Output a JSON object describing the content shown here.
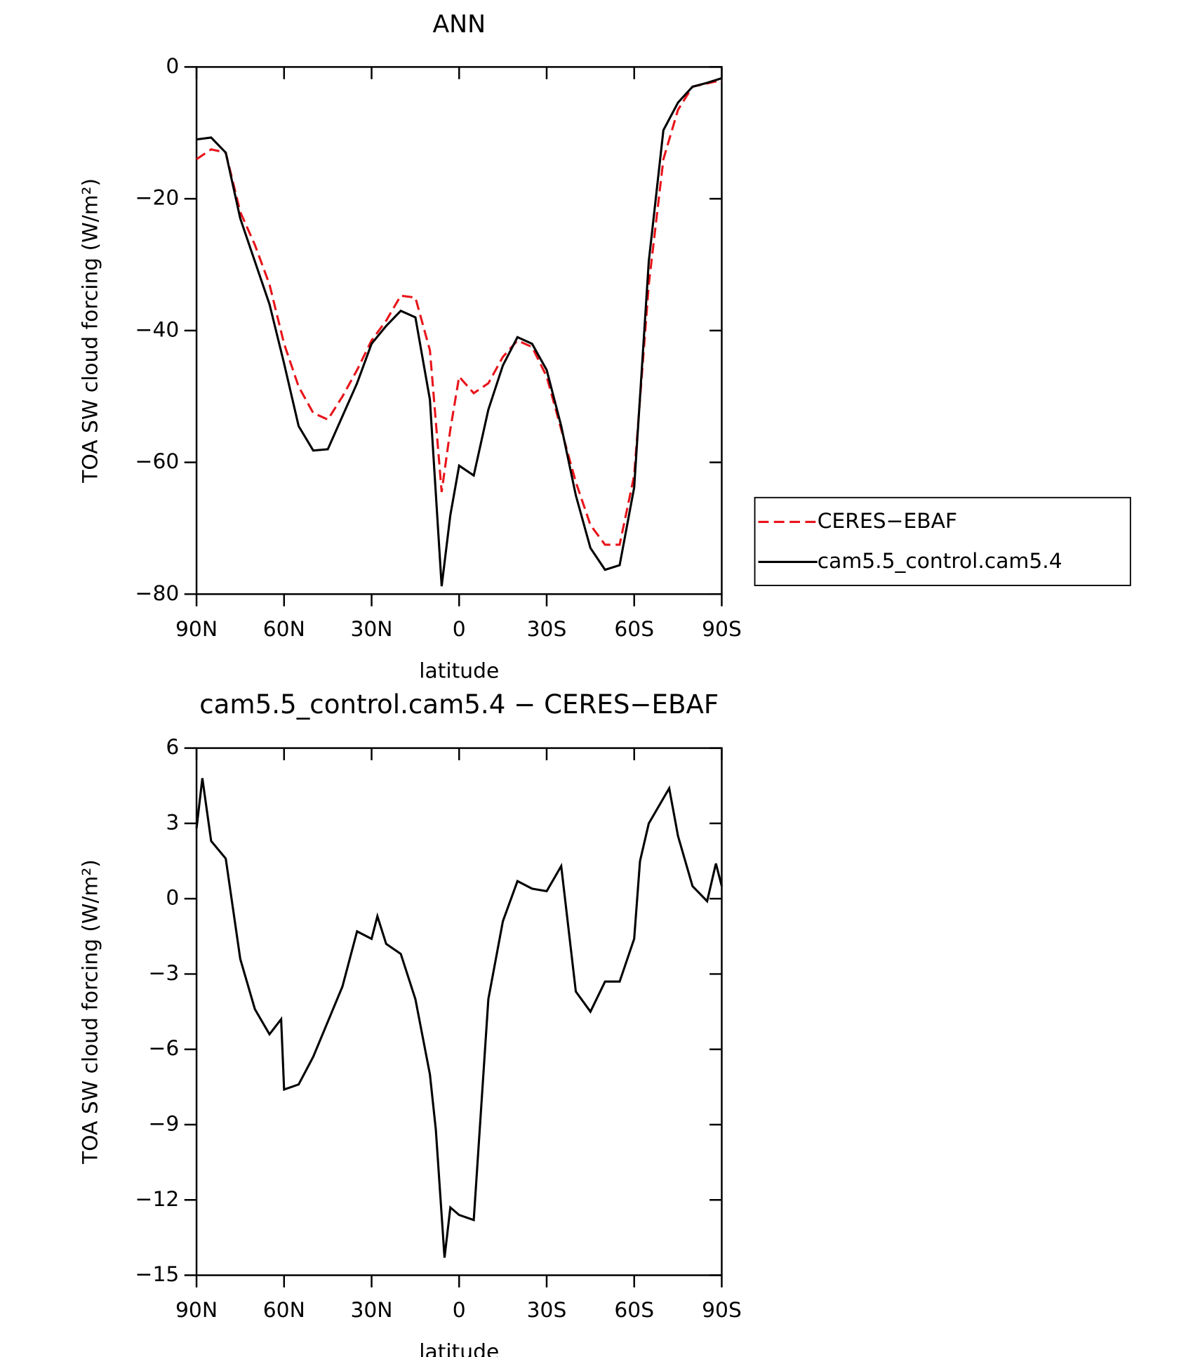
{
  "chart_data": [
    {
      "type": "line",
      "title": "ANN",
      "xlabel": "latitude",
      "ylabel": "TOA SW cloud forcing (W/m²)",
      "x": [
        90,
        85,
        80,
        75,
        70,
        65,
        60,
        55,
        50,
        45,
        40,
        35,
        30,
        25,
        20,
        15,
        10,
        6,
        3,
        0,
        -5,
        -10,
        -15,
        -20,
        -25,
        -30,
        -35,
        -40,
        -45,
        -50,
        -55,
        -60,
        -65,
        -70,
        -75,
        -80,
        -85,
        -90
      ],
      "series": [
        {
          "name": "CERES−EBAF",
          "color": "#e8141a",
          "dashed": true,
          "values": [
            -14,
            -12.5,
            -13,
            -22,
            -27,
            -33,
            -42,
            -48.5,
            -52.5,
            -53.5,
            -50,
            -46,
            -41.5,
            -38.5,
            -34.7,
            -35,
            -43,
            -64.5,
            -55,
            -47,
            -49.5,
            -48,
            -44,
            -41.5,
            -42.5,
            -47,
            -55,
            -63,
            -69.5,
            -72.5,
            -72.5,
            -62,
            -33,
            -14,
            -6.5,
            -3,
            -2.5,
            -2
          ]
        },
        {
          "name": "cam5.5_control.cam5.4",
          "color": "#000000",
          "dashed": false,
          "values": [
            -11,
            -10.7,
            -13,
            -23,
            -29.5,
            -36,
            -45,
            -54.5,
            -58.2,
            -58,
            -53,
            -48,
            -42,
            -39.3,
            -37,
            -38,
            -50.5,
            -78.8,
            -68,
            -60.5,
            -62,
            -52,
            -45.3,
            -41,
            -42,
            -46,
            -54.5,
            -65,
            -73,
            -76.3,
            -75.6,
            -63.8,
            -29.5,
            -9.6,
            -5.4,
            -3,
            -2.4,
            -1.7
          ]
        }
      ],
      "xlim": [
        90,
        -90
      ],
      "xticks": [
        {
          "value": 90,
          "label": "90N"
        },
        {
          "value": 60,
          "label": "60N"
        },
        {
          "value": 30,
          "label": "30N"
        },
        0,
        {
          "value": -30,
          "label": "30S"
        },
        {
          "value": -60,
          "label": "60S"
        },
        {
          "value": -90,
          "label": "90S"
        }
      ],
      "ylim": [
        -80,
        0
      ],
      "yticks": [
        0,
        {
          "value": -20,
          "label": "−20"
        },
        {
          "value": -40,
          "label": "−40"
        },
        {
          "value": -60,
          "label": "−60"
        },
        {
          "value": -80,
          "label": "−80"
        }
      ],
      "legend": "outside right",
      "grid": false
    },
    {
      "type": "line",
      "title": "cam5.5_control.cam5.4 − CERES−EBAF",
      "xlabel": "latitude",
      "ylabel": "TOA SW cloud forcing (W/m²)",
      "x": [
        90,
        88,
        85,
        80,
        75,
        70,
        65,
        61,
        60,
        55,
        50,
        45,
        40,
        35,
        30,
        28,
        25,
        20,
        15,
        10,
        8,
        5,
        3,
        0,
        -5,
        -10,
        -15,
        -20,
        -25,
        -30,
        -35,
        -40,
        -45,
        -50,
        -55,
        -60,
        -62,
        -65,
        -70,
        -72,
        -75,
        -80,
        -85,
        -88,
        -90
      ],
      "series": [
        {
          "color": "#000000",
          "dashed": false,
          "values": [
            2.8,
            4.8,
            2.3,
            1.6,
            -2.4,
            -4.4,
            -5.4,
            -4.8,
            -7.6,
            -7.4,
            -6.3,
            -4.9,
            -3.5,
            -1.3,
            -1.6,
            -0.7,
            -1.8,
            -2.2,
            -4,
            -7,
            -9.2,
            -14.3,
            -12.3,
            -12.6,
            -12.8,
            -4,
            -0.9,
            0.7,
            0.4,
            0.3,
            1.3,
            -3.7,
            -4.5,
            -3.3,
            -3.3,
            -1.6,
            1.5,
            3,
            4,
            4.4,
            2.5,
            0.5,
            -0.1,
            1.4,
            0.5
          ]
        }
      ],
      "xlim": [
        90,
        -90
      ],
      "xticks": [
        {
          "value": 90,
          "label": "90N"
        },
        {
          "value": 60,
          "label": "60N"
        },
        {
          "value": 30,
          "label": "30N"
        },
        0,
        {
          "value": -30,
          "label": "30S"
        },
        {
          "value": -60,
          "label": "60S"
        },
        {
          "value": -90,
          "label": "90S"
        }
      ],
      "ylim": [
        -15,
        6
      ],
      "yticks": [
        6,
        3,
        0,
        {
          "value": -3,
          "label": "−3"
        },
        {
          "value": -6,
          "label": "−6"
        },
        {
          "value": -9,
          "label": "−9"
        },
        {
          "value": -12,
          "label": "−12"
        },
        {
          "value": -15,
          "label": "−15"
        }
      ],
      "grid": false
    }
  ]
}
